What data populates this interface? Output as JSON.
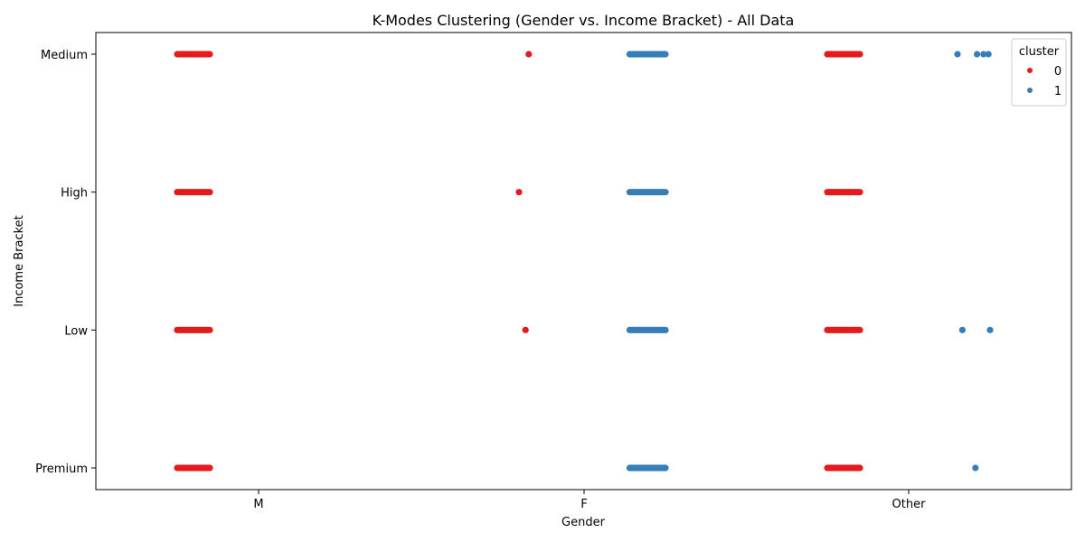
{
  "chart_data": {
    "type": "scatter",
    "title": "K-Modes Clustering (Gender vs. Income Bracket) - All Data",
    "xlabel": "Gender",
    "ylabel": "Income Bracket",
    "x_categories": [
      "M",
      "F",
      "Other"
    ],
    "y_categories": [
      "Medium",
      "High",
      "Low",
      "Premium"
    ],
    "grid": false,
    "legend": {
      "title": "cluster",
      "placement": "top-right",
      "entries": [
        {
          "label": "0",
          "color": "#e41a1c"
        },
        {
          "label": "1",
          "color": "#377eb8"
        }
      ]
    },
    "series": [
      {
        "name": "0",
        "color": "#e41a1c",
        "bands": [
          {
            "x": "M",
            "y": "Medium",
            "from": -0.25,
            "to": -0.15
          },
          {
            "x": "M",
            "y": "High",
            "from": -0.25,
            "to": -0.15
          },
          {
            "x": "M",
            "y": "Low",
            "from": -0.25,
            "to": -0.15
          },
          {
            "x": "M",
            "y": "Premium",
            "from": -0.25,
            "to": -0.15
          },
          {
            "x": "Other",
            "y": "Medium",
            "from": -0.25,
            "to": -0.15
          },
          {
            "x": "Other",
            "y": "High",
            "from": -0.25,
            "to": -0.15
          },
          {
            "x": "Other",
            "y": "Low",
            "from": -0.25,
            "to": -0.15
          },
          {
            "x": "Other",
            "y": "Premium",
            "from": -0.25,
            "to": -0.15
          }
        ],
        "points": [
          {
            "x": "F",
            "y": "Medium",
            "offset": -0.17
          },
          {
            "x": "F",
            "y": "High",
            "offset": -0.2
          },
          {
            "x": "F",
            "y": "Low",
            "offset": -0.18
          }
        ]
      },
      {
        "name": "1",
        "color": "#377eb8",
        "bands": [
          {
            "x": "F",
            "y": "Medium",
            "from": 0.14,
            "to": 0.25
          },
          {
            "x": "F",
            "y": "High",
            "from": 0.14,
            "to": 0.25
          },
          {
            "x": "F",
            "y": "Low",
            "from": 0.14,
            "to": 0.25
          },
          {
            "x": "F",
            "y": "Premium",
            "from": 0.14,
            "to": 0.25
          }
        ],
        "points": [
          {
            "x": "Other",
            "y": "Medium",
            "offset": 0.15
          },
          {
            "x": "Other",
            "y": "Medium",
            "offset": 0.21
          },
          {
            "x": "Other",
            "y": "Medium",
            "offset": 0.23
          },
          {
            "x": "Other",
            "y": "Medium",
            "offset": 0.245
          },
          {
            "x": "Other",
            "y": "Low",
            "offset": 0.165
          },
          {
            "x": "Other",
            "y": "Low",
            "offset": 0.25
          },
          {
            "x": "Other",
            "y": "Premium",
            "offset": 0.205
          }
        ]
      }
    ]
  }
}
